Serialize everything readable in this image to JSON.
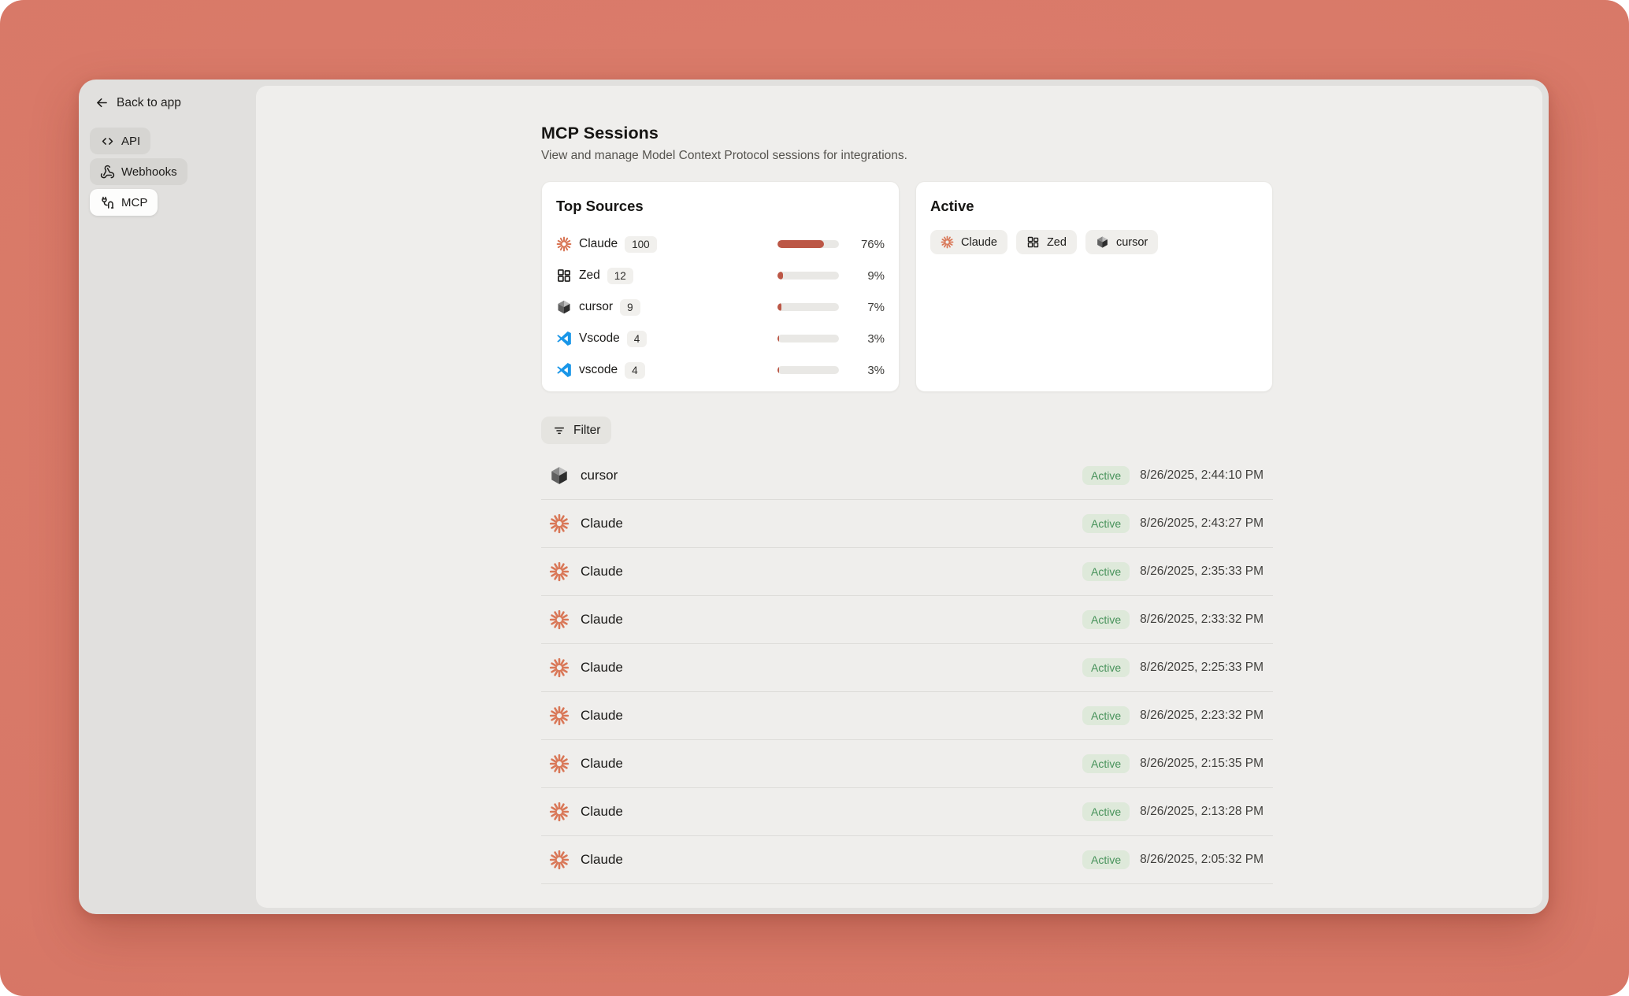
{
  "sidebar": {
    "back_label": "Back to app",
    "items": [
      {
        "label": "API",
        "icon": "api"
      },
      {
        "label": "Webhooks",
        "icon": "webhook"
      },
      {
        "label": "MCP",
        "icon": "mcp",
        "active": true
      }
    ]
  },
  "header": {
    "title": "MCP Sessions",
    "subtitle": "View and manage Model Context Protocol sessions for integrations."
  },
  "top_sources": {
    "title": "Top Sources",
    "items": [
      {
        "icon": "claude",
        "name": "Claude",
        "count": "100",
        "pct": 76,
        "pct_label": "76%"
      },
      {
        "icon": "zed",
        "name": "Zed",
        "count": "12",
        "pct": 9,
        "pct_label": "9%"
      },
      {
        "icon": "cursor",
        "name": "cursor",
        "count": "9",
        "pct": 7,
        "pct_label": "7%"
      },
      {
        "icon": "vscode",
        "name": "Vscode",
        "count": "4",
        "pct": 3,
        "pct_label": "3%"
      },
      {
        "icon": "vscode",
        "name": "vscode",
        "count": "4",
        "pct": 3,
        "pct_label": "3%"
      }
    ]
  },
  "active_card": {
    "title": "Active",
    "chips": [
      {
        "icon": "claude",
        "name": "Claude"
      },
      {
        "icon": "zed",
        "name": "Zed"
      },
      {
        "icon": "cursor",
        "name": "cursor"
      }
    ]
  },
  "filter_label": "Filter",
  "sessions": [
    {
      "icon": "cursor",
      "name": "cursor",
      "status": "Active",
      "timestamp": "8/26/2025, 2:44:10 PM"
    },
    {
      "icon": "claude",
      "name": "Claude",
      "status": "Active",
      "timestamp": "8/26/2025, 2:43:27 PM"
    },
    {
      "icon": "claude",
      "name": "Claude",
      "status": "Active",
      "timestamp": "8/26/2025, 2:35:33 PM"
    },
    {
      "icon": "claude",
      "name": "Claude",
      "status": "Active",
      "timestamp": "8/26/2025, 2:33:32 PM"
    },
    {
      "icon": "claude",
      "name": "Claude",
      "status": "Active",
      "timestamp": "8/26/2025, 2:25:33 PM"
    },
    {
      "icon": "claude",
      "name": "Claude",
      "status": "Active",
      "timestamp": "8/26/2025, 2:23:32 PM"
    },
    {
      "icon": "claude",
      "name": "Claude",
      "status": "Active",
      "timestamp": "8/26/2025, 2:15:35 PM"
    },
    {
      "icon": "claude",
      "name": "Claude",
      "status": "Active",
      "timestamp": "8/26/2025, 2:13:28 PM"
    },
    {
      "icon": "claude",
      "name": "Claude",
      "status": "Active",
      "timestamp": "8/26/2025, 2:05:32 PM"
    }
  ],
  "colors": {
    "background": "#D87867",
    "accent": "#D97757",
    "progress_fill": "#BC5746",
    "active_badge_bg": "#DEE9DA",
    "active_badge_text": "#47925A",
    "vscode_blue": "#1996E8"
  }
}
